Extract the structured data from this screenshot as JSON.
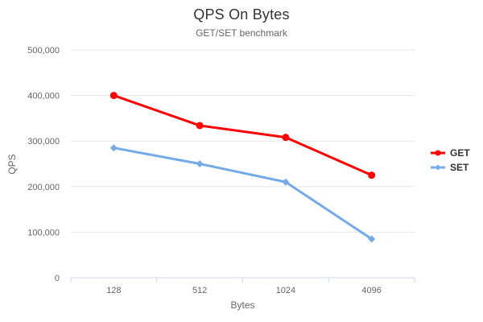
{
  "chart_data": {
    "type": "line",
    "title": "QPS On Bytes",
    "subtitle": "GET/SET benchmark",
    "xlabel": "Bytes",
    "ylabel": "QPS",
    "categories": [
      "128",
      "512",
      "1024",
      "4096"
    ],
    "series": [
      {
        "name": "GET",
        "color": "#ff0000",
        "marker": "circle",
        "values": [
          400000,
          334000,
          308000,
          225000
        ]
      },
      {
        "name": "SET",
        "color": "#75a9e8",
        "marker": "diamond",
        "values": [
          285000,
          250000,
          210000,
          85000
        ]
      }
    ],
    "ylim": [
      0,
      500000
    ],
    "yticks": [
      {
        "value": 0,
        "label": "0"
      },
      {
        "value": 100000,
        "label": "100,000"
      },
      {
        "value": 200000,
        "label": "200,000"
      },
      {
        "value": 300000,
        "label": "300,000"
      },
      {
        "value": 400000,
        "label": "400,000"
      },
      {
        "value": 500000,
        "label": "500,000"
      }
    ],
    "grid": true,
    "legend_position": "right",
    "colors": {
      "grid_line": "#e6e6e6",
      "axis_line": "#ccd6eb",
      "tick": "#ccd6eb",
      "title_text": "#333333",
      "subtitle_text": "#666666",
      "axis_label": "#666666",
      "axis_title_text": "#666666",
      "legend_text": "#333333",
      "background": "#ffffff"
    }
  }
}
